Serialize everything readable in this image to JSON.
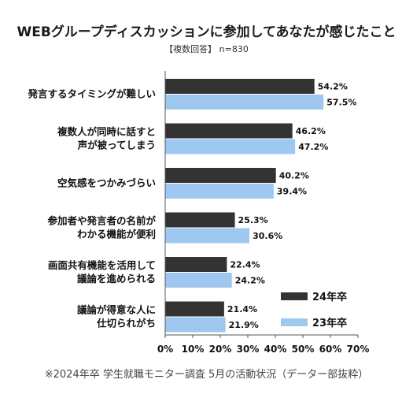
{
  "header": {
    "title": "WEBグループディスカッションに参加してあなたが感じたこと",
    "subtitle": "【複数回答】 n=830"
  },
  "footer": {
    "note": "※2024年卒 学生就職モニター調査 5月の活動状況（データー部抜粋）"
  },
  "colors": {
    "series_24": "#333333",
    "series_23": "#9fc8f0",
    "axis": "#555555"
  },
  "chart_data": {
    "type": "bar",
    "orientation": "horizontal",
    "title": "WEBグループディスカッションに参加してあなたが感じたこと",
    "subtitle": "【複数回答】 n=830",
    "categories": [
      [
        "発言するタイミングが難しい"
      ],
      [
        "複数人が同時に話すと",
        "声が被ってしまう"
      ],
      [
        "空気感をつかみづらい"
      ],
      [
        "参加者や発言者の名前が",
        "わかる機能が便利"
      ],
      [
        "画面共有機能を活用して",
        "議論を進められる"
      ],
      [
        "議論が得意な人に",
        "仕切られがち"
      ]
    ],
    "series": [
      {
        "name": "24年卒",
        "values": [
          54.2,
          46.2,
          40.2,
          25.3,
          22.4,
          21.4
        ],
        "labels": [
          "54.2%",
          "46.2%",
          "40.2%",
          "25.3%",
          "22.4%",
          "21.4%"
        ]
      },
      {
        "name": "23年卒",
        "values": [
          57.5,
          47.2,
          39.4,
          30.6,
          24.2,
          21.9
        ],
        "labels": [
          "57.5%",
          "47.2%",
          "39.4%",
          "30.6%",
          "24.2%",
          "21.9%"
        ]
      }
    ],
    "xlim": [
      0,
      70
    ],
    "xticks": [
      "0%",
      "10%",
      "20%",
      "30%",
      "40%",
      "50%",
      "60%",
      "70%"
    ],
    "legend_position": "bottom-right",
    "grid": false
  }
}
